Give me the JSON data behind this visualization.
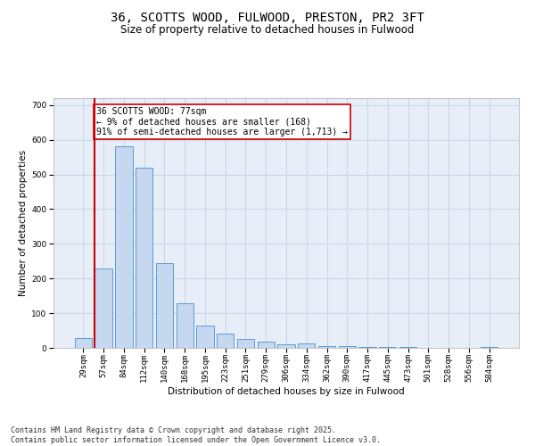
{
  "title_line1": "36, SCOTTS WOOD, FULWOOD, PRESTON, PR2 3FT",
  "title_line2": "Size of property relative to detached houses in Fulwood",
  "xlabel": "Distribution of detached houses by size in Fulwood",
  "ylabel": "Number of detached properties",
  "categories": [
    "29sqm",
    "57sqm",
    "84sqm",
    "112sqm",
    "140sqm",
    "168sqm",
    "195sqm",
    "223sqm",
    "251sqm",
    "279sqm",
    "306sqm",
    "334sqm",
    "362sqm",
    "390sqm",
    "417sqm",
    "445sqm",
    "473sqm",
    "501sqm",
    "528sqm",
    "556sqm",
    "584sqm"
  ],
  "values": [
    28,
    230,
    580,
    520,
    245,
    128,
    65,
    40,
    25,
    17,
    10,
    12,
    6,
    5,
    3,
    3,
    2,
    1,
    0,
    0,
    3
  ],
  "bar_color": "#c5d8f0",
  "bar_edge_color": "#5b9bd5",
  "vline_x_index": 1,
  "vline_color": "#cc0000",
  "annotation_text": "36 SCOTTS WOOD: 77sqm\n← 9% of detached houses are smaller (168)\n91% of semi-detached houses are larger (1,713) →",
  "annotation_box_facecolor": "#ffffff",
  "annotation_box_edgecolor": "#cc0000",
  "ylim": [
    0,
    720
  ],
  "yticks": [
    0,
    100,
    200,
    300,
    400,
    500,
    600,
    700
  ],
  "grid_color": "#c8d4e8",
  "background_color": "#e8eef8",
  "footer_line1": "Contains HM Land Registry data © Crown copyright and database right 2025.",
  "footer_line2": "Contains public sector information licensed under the Open Government Licence v3.0.",
  "title_fontsize": 10,
  "subtitle_fontsize": 8.5,
  "axis_label_fontsize": 7.5,
  "tick_fontsize": 6.5,
  "annotation_fontsize": 7,
  "footer_fontsize": 6
}
